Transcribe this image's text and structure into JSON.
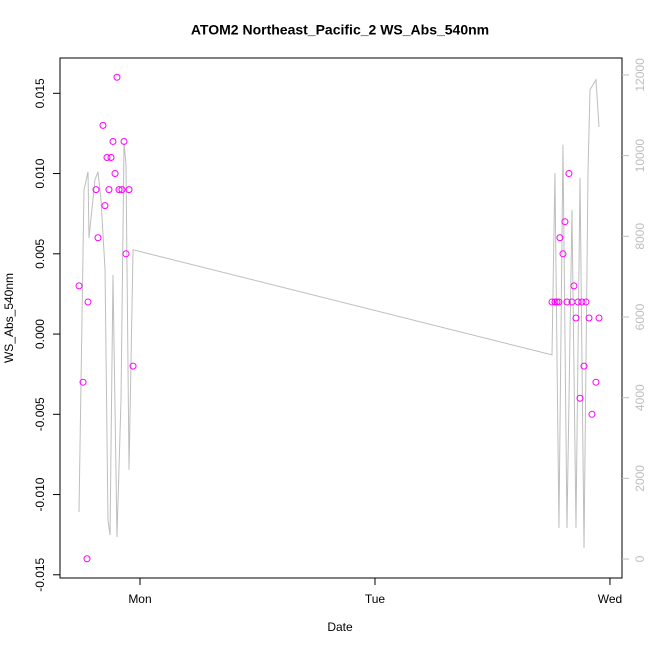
{
  "chart_data": {
    "type": "scatter",
    "title": "ATOM2 Northeast_Pacific_2 WS_Abs_540nm",
    "x_label": "Date",
    "y_label": "WS_Abs_540nm",
    "xlim": [
      -8.17,
      49.23
    ],
    "xticks": [
      {
        "value": 0,
        "label": "Mon"
      },
      {
        "value": 24,
        "label": "Tue"
      },
      {
        "value": 48,
        "label": "Wed"
      }
    ],
    "ylim": [
      -0.0152,
      0.0172
    ],
    "yticks": [
      -0.015,
      {
        "value": -0.01,
        "label": "-0.010"
      },
      -0.005,
      {
        "value": 0,
        "label": "0.000"
      },
      0.005,
      {
        "value": 0.01,
        "label": "0.010"
      },
      0.015
    ],
    "y2lim": [
      -470,
      12420
    ],
    "y2ticks": [
      0,
      2000,
      4000,
      6000,
      8000,
      10000,
      12000
    ],
    "series": [
      {
        "color": "#ff00ff",
        "x": [
          -6.23,
          -5.82,
          -5.41,
          -5.31,
          -4.49,
          -4.29,
          -3.78,
          -3.58,
          -3.37,
          -3.17,
          -2.96,
          -2.76,
          -2.55,
          -2.35,
          -2.14,
          -1.84,
          -1.63,
          -1.43,
          -1.12,
          -0.71,
          42.08,
          42.38,
          42.59,
          42.79,
          42.89,
          43.2,
          43.4,
          43.61,
          43.81,
          44.12,
          44.32,
          44.53,
          44.73,
          44.94,
          45.14,
          45.35,
          45.55,
          45.86,
          46.16,
          46.57,
          46.88
        ],
        "values": [
          0.003,
          -0.003,
          -0.014,
          0.002,
          0.009,
          0.006,
          0.013,
          0.008,
          0.011,
          0.009,
          0.011,
          0.012,
          0.01,
          0.016,
          0.009,
          0.009,
          0.012,
          0.005,
          0.009,
          -0.002,
          0.002,
          0.002,
          0.002,
          0.002,
          0.006,
          0.005,
          0.007,
          0.002,
          0.01,
          0.002,
          0.003,
          0.001,
          0.002,
          -0.004,
          0.002,
          -0.002,
          0.002,
          0.001,
          -0.005,
          -0.003,
          0.001
        ]
      },
      {
        "color": "#bebebe",
        "axis": "y2",
        "x": [
          -6.23,
          -5.72,
          -5.31,
          -5.21,
          -4.6,
          -4.29,
          -3.98,
          -3.57,
          -3.27,
          -3.06,
          -2.76,
          -2.35,
          -1.94,
          -1.63,
          -1.43,
          -1.12,
          -0.71,
          -0.61,
          42.08,
          42.38,
          42.79,
          43.2,
          43.61,
          44.12,
          44.53,
          44.94,
          45.35,
          45.76,
          45.96,
          46.57,
          46.88
        ],
        "values": [
          1166,
          9150,
          9600,
          7960,
          9400,
          9600,
          8900,
          7170,
          970,
          595,
          7045,
          545,
          3945,
          10320,
          9770,
          2210,
          7660,
          7660,
          5060,
          9570,
          770,
          10270,
          770,
          8655,
          770,
          9450,
          270,
          9600,
          11630,
          11880,
          10710
        ]
      }
    ]
  }
}
